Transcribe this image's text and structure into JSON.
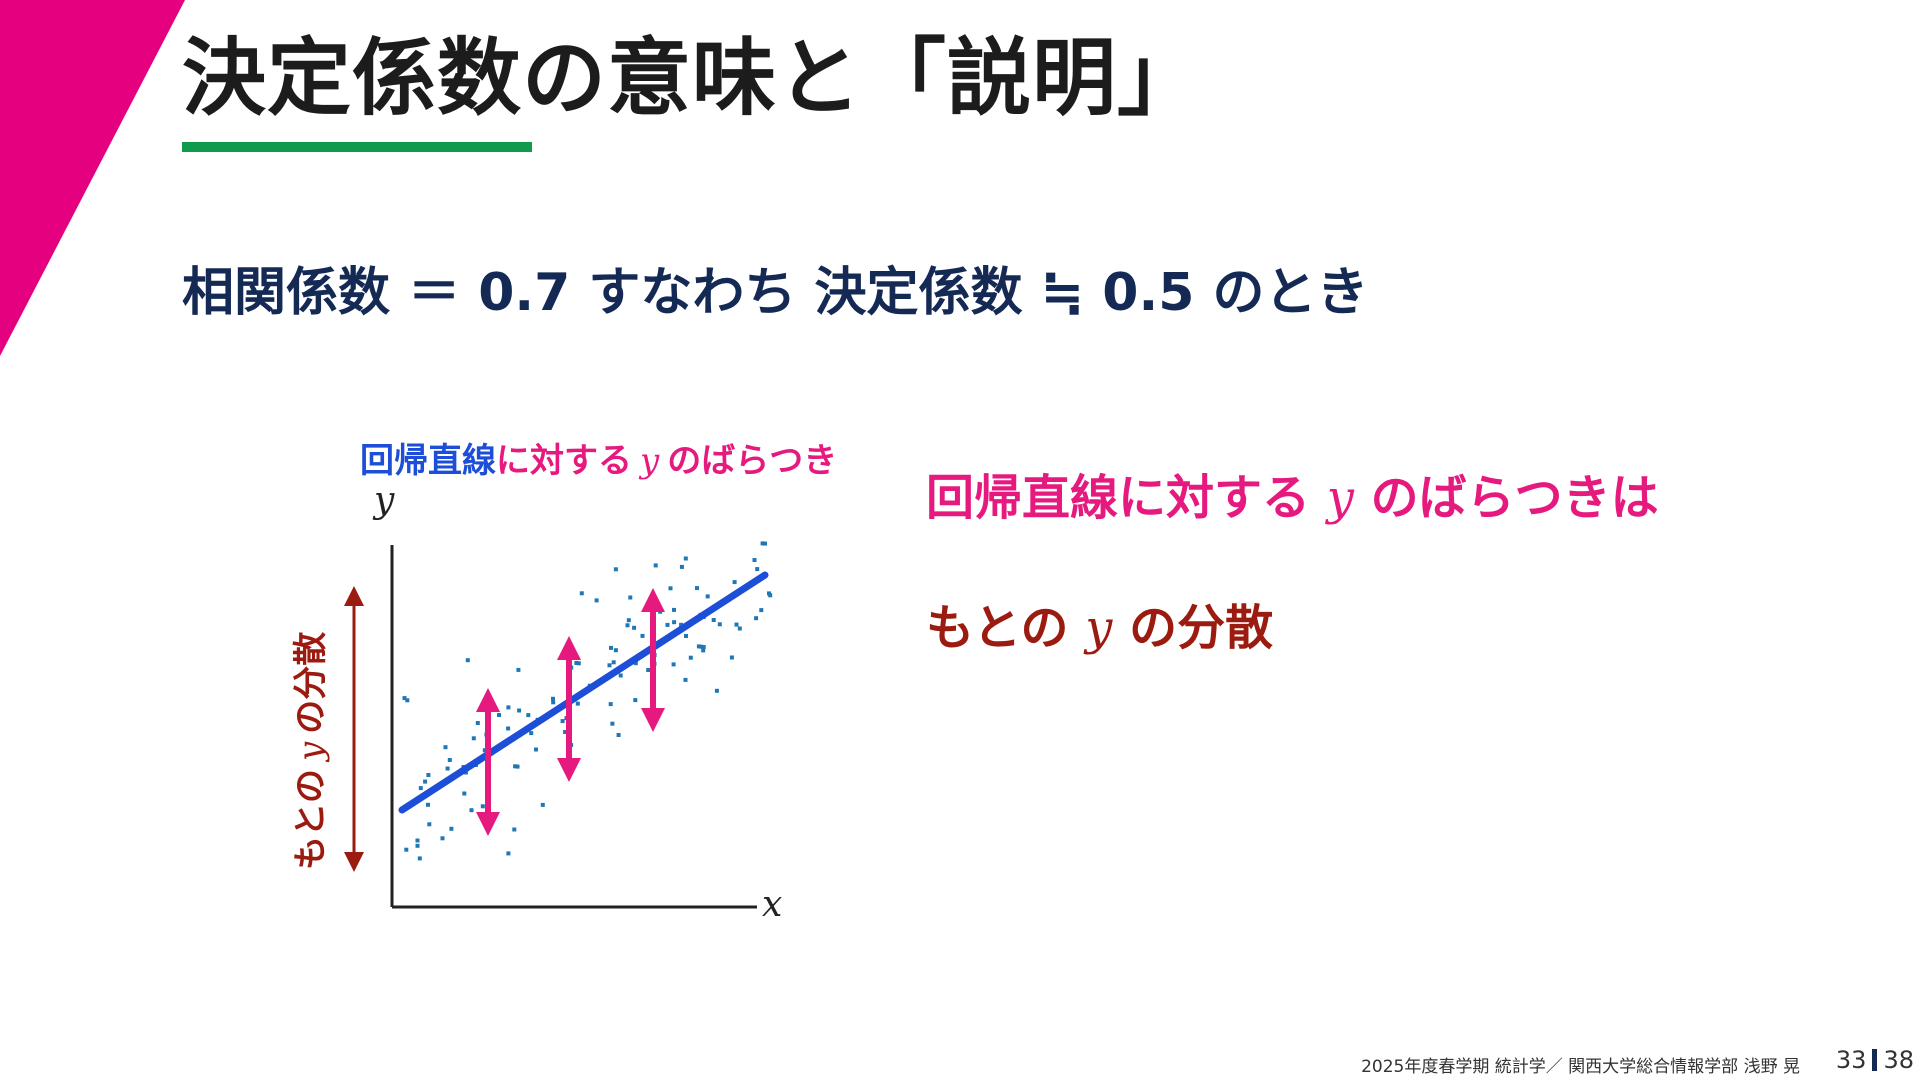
{
  "slide": {
    "title": "決定係数の意味と「説明」",
    "headline": "相関係数 ＝ 0.7 すなわち 決定係数 ≒ 0.5 のとき",
    "colors": {
      "accent_triangle": "#e4007f",
      "title_rule": "#0f9a4c",
      "regression_line": "#1d4ed8",
      "residual_arrow": "#e6197e",
      "original_variance": "#9b1b10",
      "points": "#1f77b4",
      "headline": "#142a55"
    }
  },
  "figure": {
    "caption_blue": "回帰直線",
    "caption_pink_pre": "に対する",
    "caption_var": "y",
    "caption_pink_post": "のばらつき",
    "y_axis_label": "y",
    "x_axis_label": "x",
    "side_label_pre": "もとの",
    "side_label_var": "y",
    "side_label_post": "の分散"
  },
  "right_text": {
    "line1_pre": "回帰直線に対する",
    "line1_var": "y",
    "line1_post": "のばらつきは",
    "line2_pre": "もとの",
    "line2_var": "y",
    "line2_post": "の分散"
  },
  "footer": {
    "course": "2025年度春学期  統計学／  関西大学総合情報学部  浅野  晃",
    "page": "33",
    "total": "38"
  }
}
